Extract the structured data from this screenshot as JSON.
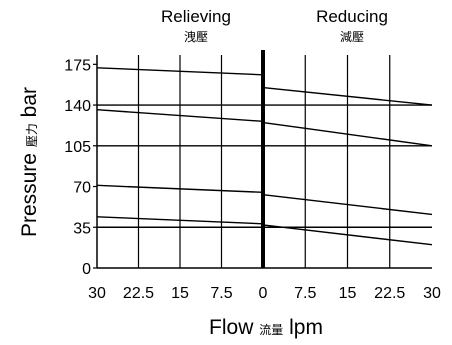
{
  "chart_data": {
    "type": "line",
    "title": "",
    "panels": [
      {
        "name": "Relieving",
        "name_sub": "洩壓",
        "x_direction": "left"
      },
      {
        "name": "Reducing",
        "name_sub": "減壓",
        "x_direction": "right"
      }
    ],
    "ylabel_main": "Pressure",
    "ylabel_sub": "壓力",
    "ylabel_unit": "bar",
    "xlabel_main": "Flow",
    "xlabel_sub": "流量",
    "xlabel_unit": "lpm",
    "y_ticks": [
      0,
      35,
      70,
      105,
      140,
      175
    ],
    "x_ticks_relieving": [
      "30",
      "22.5",
      "15",
      "7.5",
      "0"
    ],
    "x_ticks_reducing": [
      "7.5",
      "15",
      "22.5",
      "30"
    ],
    "xlim": [
      0,
      30
    ],
    "ylim": [
      0,
      183
    ],
    "grid": true,
    "series": [
      {
        "panel": "Relieving",
        "x": [
          30,
          0
        ],
        "y": [
          172,
          166
        ]
      },
      {
        "panel": "Relieving",
        "x": [
          30,
          0
        ],
        "y": [
          140,
          140
        ]
      },
      {
        "panel": "Relieving",
        "x": [
          30,
          0
        ],
        "y": [
          136,
          126
        ]
      },
      {
        "panel": "Relieving",
        "x": [
          30,
          0
        ],
        "y": [
          105,
          105
        ]
      },
      {
        "panel": "Relieving",
        "x": [
          30,
          0
        ],
        "y": [
          71,
          65
        ]
      },
      {
        "panel": "Relieving",
        "x": [
          30,
          0
        ],
        "y": [
          44,
          38
        ]
      },
      {
        "panel": "Relieving",
        "x": [
          30,
          0
        ],
        "y": [
          35,
          35
        ]
      },
      {
        "panel": "Reducing",
        "x": [
          0,
          30
        ],
        "y": [
          155,
          140
        ]
      },
      {
        "panel": "Reducing",
        "x": [
          0,
          30
        ],
        "y": [
          140,
          140
        ]
      },
      {
        "panel": "Reducing",
        "x": [
          0,
          30
        ],
        "y": [
          125,
          105
        ]
      },
      {
        "panel": "Reducing",
        "x": [
          0,
          30
        ],
        "y": [
          105,
          105
        ]
      },
      {
        "panel": "Reducing",
        "x": [
          0,
          30
        ],
        "y": [
          63,
          46
        ]
      },
      {
        "panel": "Reducing",
        "x": [
          0,
          30
        ],
        "y": [
          37,
          20
        ]
      },
      {
        "panel": "Reducing",
        "x": [
          0,
          30
        ],
        "y": [
          35,
          35
        ]
      }
    ]
  }
}
